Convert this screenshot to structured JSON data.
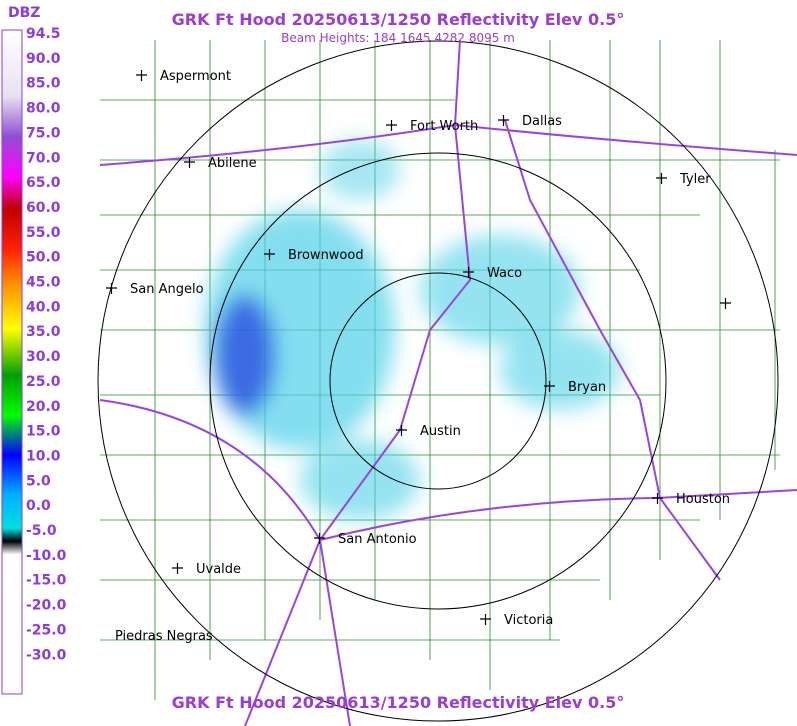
{
  "header": {
    "title": "GRK Ft Hood 20250613/1250 Reflectivity Elev 0.5°",
    "subtitle": "Beam Heights: 184 1645 4282 8095 m"
  },
  "footer": {
    "title": "GRK Ft Hood 20250613/1250 Reflectivity Elev 0.5°"
  },
  "legend": {
    "unit": "DBZ",
    "labels": [
      "94.5",
      "90.0",
      "85.0",
      "80.0",
      "75.0",
      "70.0",
      "65.0",
      "60.0",
      "55.0",
      "50.0",
      "45.0",
      "40.0",
      "35.0",
      "30.0",
      "25.0",
      "20.0",
      "15.0",
      "10.0",
      "5.0",
      "0.0",
      "-5.0",
      "-10.0",
      "-15.0",
      "-20.0",
      "-25.0",
      "-30.0"
    ]
  },
  "cities": [
    {
      "label": "Aspermont"
    },
    {
      "label": "Fort Worth"
    },
    {
      "label": "Dallas"
    },
    {
      "label": "Abilene"
    },
    {
      "label": "Tyler"
    },
    {
      "label": "Brownwood"
    },
    {
      "label": "Waco"
    },
    {
      "label": "San Angelo"
    },
    {
      "label": "Bryan"
    },
    {
      "label": "Austin"
    },
    {
      "label": "Houston"
    },
    {
      "label": "San Antonio"
    },
    {
      "label": "Uvalde"
    },
    {
      "label": "Victoria"
    },
    {
      "label": "Piedras Negras"
    }
  ]
}
